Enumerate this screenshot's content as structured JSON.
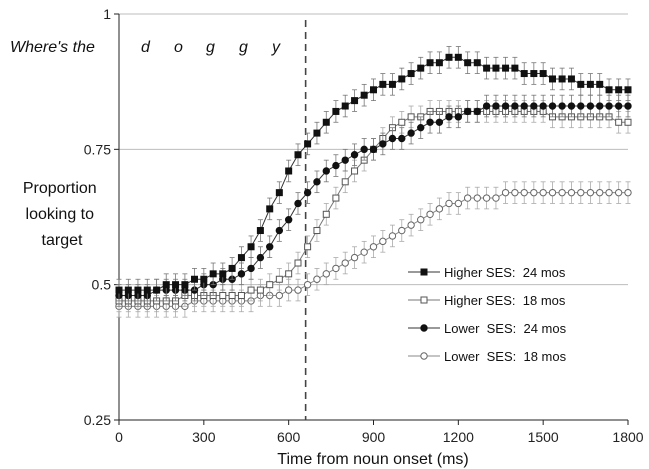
{
  "chart_data": {
    "type": "line",
    "title": "",
    "xlabel": "Time from noun onset (ms)",
    "ylabel": "Proportion looking to target",
    "xlim": [
      0,
      1800
    ],
    "ylim": [
      0.25,
      1
    ],
    "xticks": [
      0,
      300,
      600,
      900,
      1200,
      1500,
      1800
    ],
    "yticks": [
      0.25,
      0.5,
      0.75,
      1
    ],
    "ytick_labels": [
      "0.25",
      "0.5",
      "0.75",
      "1"
    ],
    "grid": "horizontal",
    "legend_position": "lower-right",
    "annotations": {
      "phrase": "Where's the",
      "letters": [
        "d",
        "o",
        "g",
        "g",
        "y"
      ],
      "noun_onset_line_x": 660
    },
    "x": [
      0,
      33,
      67,
      100,
      133,
      167,
      200,
      233,
      267,
      300,
      333,
      367,
      400,
      433,
      467,
      500,
      533,
      567,
      600,
      633,
      667,
      700,
      733,
      767,
      800,
      833,
      867,
      900,
      933,
      967,
      1000,
      1033,
      1067,
      1100,
      1133,
      1167,
      1200,
      1233,
      1267,
      1300,
      1333,
      1367,
      1400,
      1433,
      1467,
      1500,
      1533,
      1567,
      1600,
      1633,
      1667,
      1700,
      1733,
      1767,
      1800
    ],
    "series": [
      {
        "name": "Higher SES:  24 mos",
        "marker": "filled-square",
        "values": [
          0.49,
          0.49,
          0.49,
          0.49,
          0.49,
          0.5,
          0.5,
          0.5,
          0.51,
          0.51,
          0.52,
          0.52,
          0.53,
          0.55,
          0.57,
          0.6,
          0.64,
          0.67,
          0.71,
          0.74,
          0.76,
          0.78,
          0.8,
          0.82,
          0.83,
          0.84,
          0.85,
          0.86,
          0.87,
          0.87,
          0.88,
          0.89,
          0.9,
          0.91,
          0.91,
          0.92,
          0.92,
          0.91,
          0.91,
          0.9,
          0.9,
          0.9,
          0.9,
          0.89,
          0.89,
          0.89,
          0.88,
          0.88,
          0.88,
          0.87,
          0.87,
          0.87,
          0.86,
          0.86,
          0.86
        ]
      },
      {
        "name": "Higher SES:  18 mos",
        "marker": "open-square",
        "values": [
          0.47,
          0.47,
          0.47,
          0.47,
          0.47,
          0.47,
          0.47,
          0.48,
          0.48,
          0.48,
          0.48,
          0.48,
          0.48,
          0.48,
          0.49,
          0.49,
          0.5,
          0.51,
          0.52,
          0.54,
          0.57,
          0.6,
          0.63,
          0.66,
          0.69,
          0.71,
          0.73,
          0.75,
          0.77,
          0.79,
          0.8,
          0.81,
          0.81,
          0.82,
          0.82,
          0.82,
          0.82,
          0.82,
          0.82,
          0.82,
          0.82,
          0.82,
          0.82,
          0.82,
          0.82,
          0.82,
          0.81,
          0.81,
          0.81,
          0.81,
          0.81,
          0.81,
          0.81,
          0.8,
          0.8
        ]
      },
      {
        "name": "Lower  SES:  24 mos",
        "marker": "filled-circle",
        "values": [
          0.48,
          0.48,
          0.48,
          0.48,
          0.49,
          0.49,
          0.49,
          0.49,
          0.49,
          0.5,
          0.5,
          0.51,
          0.51,
          0.52,
          0.53,
          0.55,
          0.57,
          0.6,
          0.62,
          0.65,
          0.67,
          0.69,
          0.71,
          0.72,
          0.73,
          0.74,
          0.75,
          0.75,
          0.76,
          0.77,
          0.77,
          0.78,
          0.79,
          0.8,
          0.8,
          0.81,
          0.81,
          0.82,
          0.82,
          0.83,
          0.83,
          0.83,
          0.83,
          0.83,
          0.83,
          0.83,
          0.83,
          0.83,
          0.83,
          0.83,
          0.83,
          0.83,
          0.83,
          0.83,
          0.83
        ]
      },
      {
        "name": "Lower  SES:  18 mos",
        "marker": "open-circle",
        "values": [
          0.46,
          0.46,
          0.46,
          0.46,
          0.46,
          0.46,
          0.46,
          0.46,
          0.47,
          0.47,
          0.47,
          0.47,
          0.47,
          0.47,
          0.47,
          0.48,
          0.48,
          0.48,
          0.49,
          0.49,
          0.5,
          0.51,
          0.52,
          0.53,
          0.54,
          0.55,
          0.56,
          0.57,
          0.58,
          0.59,
          0.6,
          0.61,
          0.62,
          0.63,
          0.64,
          0.65,
          0.65,
          0.66,
          0.66,
          0.66,
          0.66,
          0.67,
          0.67,
          0.67,
          0.67,
          0.67,
          0.67,
          0.67,
          0.67,
          0.67,
          0.67,
          0.67,
          0.67,
          0.67,
          0.67
        ]
      }
    ],
    "error_bar_halfwidth": 0.02
  }
}
